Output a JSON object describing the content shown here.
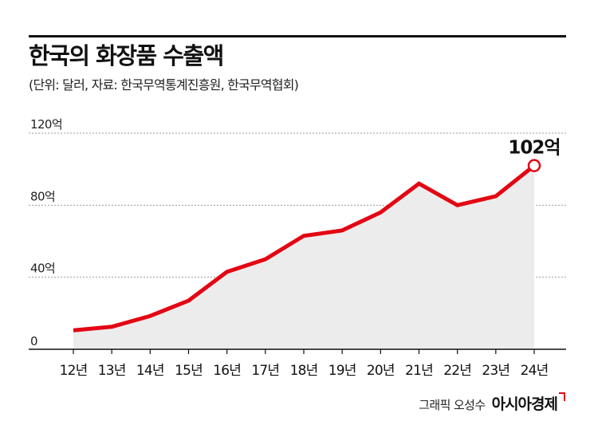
{
  "header": {
    "title": "한국의 화장품 수출액",
    "source": "(단위: 달러, 자료: 한국무역통계진흥원, 한국무역협회)"
  },
  "chart_data": {
    "type": "area",
    "title": "한국의 화장품 수출액",
    "categories": [
      "12년",
      "13년",
      "14년",
      "15년",
      "16년",
      "17년",
      "18년",
      "19년",
      "20년",
      "21년",
      "22년",
      "23년",
      "24년"
    ],
    "values": [
      10.5,
      12.5,
      18.5,
      27,
      43,
      50,
      63,
      66,
      76,
      92,
      80,
      85,
      102
    ],
    "ylim": [
      0,
      120
    ],
    "yticks": [
      0,
      40,
      80,
      120
    ],
    "ytick_labels": [
      "0",
      "40억",
      "80억",
      "120억"
    ],
    "highlight": {
      "index": 12,
      "label": "102억"
    },
    "grid": true,
    "colors": {
      "line": "#e30613",
      "fill": "#ececec",
      "grid": "#9a9a9a",
      "axis": "#111111"
    }
  },
  "footer": {
    "credit": "그래픽 오성수",
    "brand": "아시아경제"
  }
}
